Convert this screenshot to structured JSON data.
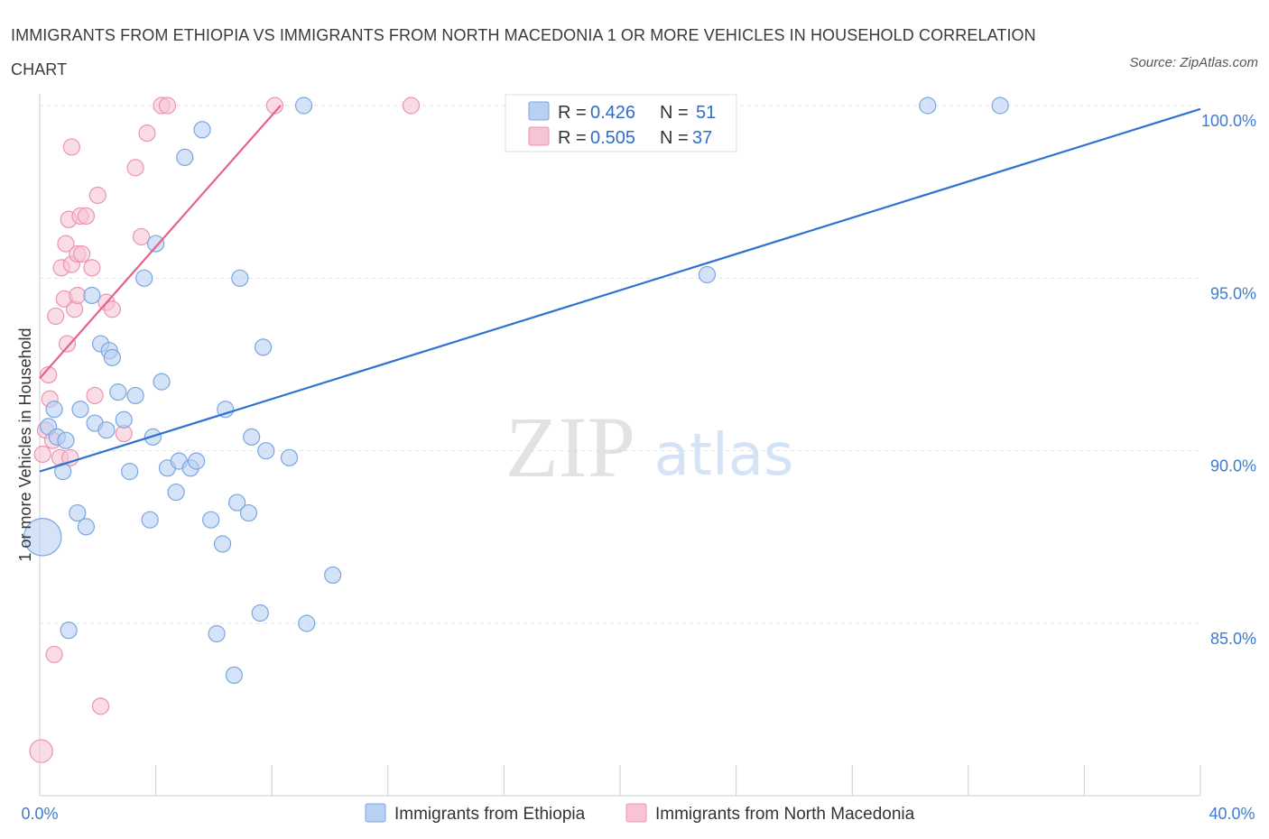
{
  "title": "IMMIGRANTS FROM ETHIOPIA VS IMMIGRANTS FROM NORTH MACEDONIA 1 OR MORE VEHICLES IN HOUSEHOLD CORRELATION CHART",
  "source": "Source: ZipAtlas.com",
  "watermark": {
    "zip": "ZIP",
    "atlas": "atlas"
  },
  "colors": {
    "ethiopia_fill": "#b8d1f3",
    "ethiopia_stroke": "#7aa6e0",
    "ethiopia_line": "#2f72d0",
    "macedonia_fill": "#f7c4d4",
    "macedonia_stroke": "#ec94b0",
    "macedonia_line": "#e8608a",
    "tick_text": "#3f7bd1",
    "grid": "#dde3ea"
  },
  "legend": {
    "r_label": "R =",
    "n_label": "N =",
    "rows": [
      {
        "r": "0.426",
        "n": "51"
      },
      {
        "r": "0.505",
        "n": "37"
      }
    ]
  },
  "chart_data": {
    "type": "scatter",
    "xlabel": "",
    "ylabel": "1 or more Vehicles in Household",
    "xlim": [
      0,
      40
    ],
    "ylim": [
      80.3,
      100.4
    ],
    "x_tick_labels": [
      "0.0%",
      "40.0%"
    ],
    "y_ticks": [
      85,
      90,
      95,
      100
    ],
    "y_tick_labels": [
      "85.0%",
      "90.0%",
      "95.0%",
      "100.0%"
    ],
    "series": [
      {
        "name": "Immigrants from Ethiopia",
        "r": 0.426,
        "n": 51,
        "trend": {
          "x0": 0.0,
          "y0": 89.4,
          "x1": 40.0,
          "y1": 99.9
        },
        "points": [
          [
            0.1,
            87.5,
            2.3
          ],
          [
            0.3,
            90.7,
            1
          ],
          [
            0.5,
            91.2,
            1
          ],
          [
            0.6,
            90.4,
            1
          ],
          [
            0.8,
            89.4,
            1
          ],
          [
            0.9,
            90.3,
            1
          ],
          [
            1.0,
            84.8,
            1
          ],
          [
            1.3,
            88.2,
            1
          ],
          [
            1.4,
            91.2,
            1
          ],
          [
            1.6,
            87.8,
            1
          ],
          [
            1.8,
            94.5,
            1
          ],
          [
            1.9,
            90.8,
            1
          ],
          [
            2.1,
            93.1,
            1
          ],
          [
            2.3,
            90.6,
            1
          ],
          [
            2.4,
            92.9,
            1
          ],
          [
            2.5,
            92.7,
            1
          ],
          [
            2.7,
            91.7,
            1
          ],
          [
            2.9,
            90.9,
            1
          ],
          [
            3.1,
            89.4,
            1
          ],
          [
            3.3,
            91.6,
            1
          ],
          [
            3.6,
            95.0,
            1
          ],
          [
            3.8,
            88.0,
            1
          ],
          [
            3.9,
            90.4,
            1
          ],
          [
            4.0,
            96.0,
            1
          ],
          [
            4.2,
            92.0,
            1
          ],
          [
            4.4,
            89.5,
            1
          ],
          [
            4.7,
            88.8,
            1
          ],
          [
            4.8,
            89.7,
            1
          ],
          [
            5.0,
            98.5,
            1
          ],
          [
            5.2,
            89.5,
            1
          ],
          [
            5.4,
            89.7,
            1
          ],
          [
            5.6,
            99.3,
            1
          ],
          [
            5.9,
            88.0,
            1
          ],
          [
            6.1,
            84.7,
            1
          ],
          [
            6.3,
            87.3,
            1
          ],
          [
            6.4,
            91.2,
            1
          ],
          [
            6.7,
            83.5,
            1
          ],
          [
            6.8,
            88.5,
            1
          ],
          [
            6.9,
            95.0,
            1
          ],
          [
            7.2,
            88.2,
            1
          ],
          [
            7.3,
            90.4,
            1
          ],
          [
            7.6,
            85.3,
            1
          ],
          [
            7.7,
            93.0,
            1
          ],
          [
            7.8,
            90.0,
            1
          ],
          [
            8.6,
            89.8,
            1
          ],
          [
            9.1,
            100.0,
            1
          ],
          [
            9.2,
            85.0,
            1
          ],
          [
            10.1,
            86.4,
            1
          ],
          [
            23.0,
            95.1,
            1
          ],
          [
            30.6,
            100.0,
            1
          ],
          [
            33.1,
            100.0,
            1
          ]
        ]
      },
      {
        "name": "Immigrants from North Macedonia",
        "r": 0.505,
        "n": 37,
        "trend": {
          "x0": 0.0,
          "y0": 92.1,
          "x1": 8.3,
          "y1": 100.0
        },
        "points": [
          [
            0.05,
            81.3,
            1.4
          ],
          [
            0.1,
            89.9,
            1
          ],
          [
            0.2,
            90.6,
            1
          ],
          [
            0.3,
            92.2,
            1
          ],
          [
            0.35,
            91.5,
            1
          ],
          [
            0.45,
            90.3,
            1
          ],
          [
            0.5,
            84.1,
            1
          ],
          [
            0.55,
            93.9,
            1
          ],
          [
            0.7,
            89.8,
            1
          ],
          [
            0.75,
            95.3,
            1
          ],
          [
            0.85,
            94.4,
            1
          ],
          [
            0.9,
            96.0,
            1
          ],
          [
            0.95,
            93.1,
            1
          ],
          [
            1.0,
            96.7,
            1
          ],
          [
            1.05,
            89.8,
            1
          ],
          [
            1.1,
            95.4,
            1
          ],
          [
            1.1,
            98.8,
            1
          ],
          [
            1.2,
            94.1,
            1
          ],
          [
            1.3,
            95.7,
            1
          ],
          [
            1.3,
            94.5,
            1
          ],
          [
            1.4,
            96.8,
            1
          ],
          [
            1.45,
            95.7,
            1
          ],
          [
            1.6,
            96.8,
            1
          ],
          [
            1.8,
            95.3,
            1
          ],
          [
            1.9,
            91.6,
            1
          ],
          [
            2.0,
            97.4,
            1
          ],
          [
            2.1,
            82.6,
            1
          ],
          [
            2.3,
            94.3,
            1
          ],
          [
            2.5,
            94.1,
            1
          ],
          [
            2.9,
            90.5,
            1
          ],
          [
            3.3,
            98.2,
            1
          ],
          [
            3.5,
            96.2,
            1
          ],
          [
            3.7,
            99.2,
            1
          ],
          [
            4.2,
            100.0,
            1
          ],
          [
            4.4,
            100.0,
            1
          ],
          [
            8.1,
            100.0,
            1
          ],
          [
            12.8,
            100.0,
            1
          ]
        ]
      }
    ]
  }
}
